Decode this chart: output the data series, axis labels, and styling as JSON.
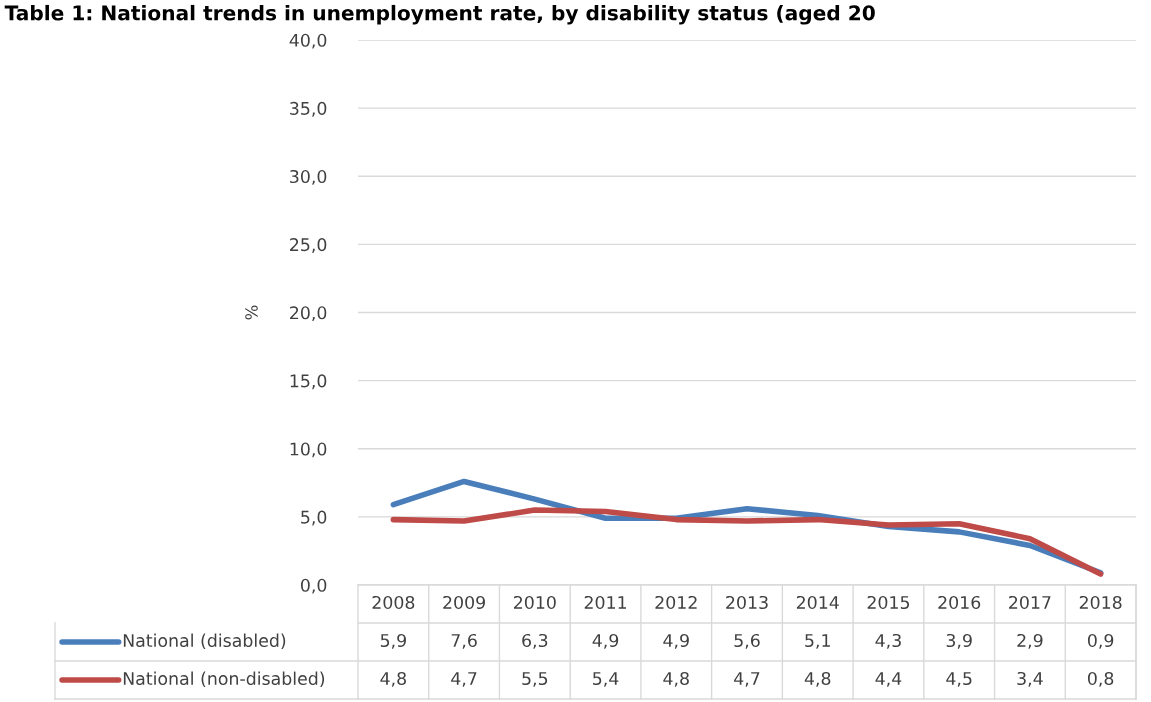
{
  "chart_data": {
    "type": "line",
    "title": "Table 1: National trends in unemployment rate, by disability status (aged 20",
    "ylabel": "%",
    "categories": [
      "2008",
      "2009",
      "2010",
      "2011",
      "2012",
      "2013",
      "2014",
      "2015",
      "2016",
      "2017",
      "2018"
    ],
    "series": [
      {
        "name": "National (disabled)",
        "color": "#4a7ebb",
        "values": [
          5.9,
          7.6,
          6.3,
          4.9,
          4.9,
          5.6,
          5.1,
          4.3,
          3.9,
          2.9,
          0.9
        ],
        "value_labels": [
          "5,9",
          "7,6",
          "6,3",
          "4,9",
          "4,9",
          "5,6",
          "5,1",
          "4,3",
          "3,9",
          "2,9",
          "0,9"
        ]
      },
      {
        "name": "National (non-disabled)",
        "color": "#be4b48",
        "values": [
          4.8,
          4.7,
          5.5,
          5.4,
          4.8,
          4.7,
          4.8,
          4.4,
          4.5,
          3.4,
          0.8
        ],
        "value_labels": [
          "4,8",
          "4,7",
          "5,5",
          "5,4",
          "4,8",
          "4,7",
          "4,8",
          "4,4",
          "4,5",
          "3,4",
          "0,8"
        ]
      }
    ],
    "ylim": [
      0,
      40
    ],
    "yticks": [
      {
        "value": 0,
        "label": "0,0"
      },
      {
        "value": 5,
        "label": "5,0"
      },
      {
        "value": 10,
        "label": "10,0"
      },
      {
        "value": 15,
        "label": "15,0"
      },
      {
        "value": 20,
        "label": "20,0"
      },
      {
        "value": 25,
        "label": "25,0"
      },
      {
        "value": 30,
        "label": "30,0"
      },
      {
        "value": 35,
        "label": "35,0"
      },
      {
        "value": 40,
        "label": "40,0"
      }
    ],
    "grid": "y",
    "legend": "bottom",
    "marker": "none",
    "line_style": "solid"
  }
}
